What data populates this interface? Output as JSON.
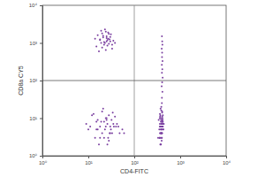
{
  "chart_data": {
    "type": "scatter",
    "log": true,
    "grid": false,
    "color": "#7a3fa0",
    "marker": "dot",
    "xlabel": "CD4-FITC",
    "ylabel": "CD8a CY5",
    "xlim": [
      1,
      10000
    ],
    "ylim": [
      1,
      10000
    ],
    "xticks": [
      {
        "value": 1,
        "label": "10⁰"
      },
      {
        "value": 10,
        "label": "10¹"
      },
      {
        "value": 100,
        "label": "10²"
      },
      {
        "value": 1000,
        "label": "10³"
      },
      {
        "value": 10000,
        "label": "10⁴"
      }
    ],
    "yticks": [
      {
        "value": 1,
        "label": "10⁰"
      },
      {
        "value": 10,
        "label": "10¹"
      },
      {
        "value": 100,
        "label": "10²"
      },
      {
        "value": 1000,
        "label": "10³"
      },
      {
        "value": 10000,
        "label": "10⁴"
      }
    ],
    "gates": {
      "x": 100,
      "y": 100
    },
    "x": [
      18,
      22,
      25,
      30,
      15,
      20,
      27,
      33,
      24,
      19,
      28,
      21,
      16,
      26,
      35,
      23,
      29,
      17,
      31,
      22,
      25,
      20,
      27,
      38,
      14,
      24,
      30,
      19,
      26,
      21,
      33,
      23,
      28,
      18,
      25,
      15,
      22,
      30,
      12,
      40,
      18,
      25,
      35,
      10,
      28,
      20,
      45,
      16,
      33,
      24,
      14,
      38,
      26,
      19,
      55,
      11,
      29,
      21,
      17,
      32,
      23,
      42,
      13,
      27,
      36,
      20,
      24,
      31,
      9,
      48,
      18,
      26,
      15,
      34,
      22,
      28,
      16,
      25,
      30,
      60,
      350,
      380,
      400,
      420,
      360,
      390,
      410,
      370,
      430,
      340,
      395,
      405,
      375,
      385,
      415,
      355,
      365,
      425,
      398,
      388,
      372,
      402,
      412,
      382,
      362,
      392,
      440,
      330,
      378,
      408,
      418,
      368,
      386,
      396,
      352,
      406,
      384,
      374,
      394,
      414,
      364,
      404,
      381,
      391,
      371,
      401,
      411,
      361,
      389,
      399,
      379,
      369,
      409,
      419,
      359,
      393,
      383,
      373,
      403,
      413,
      400,
      410,
      395,
      405,
      415,
      400,
      408,
      398,
      412,
      402,
      404,
      396,
      410,
      406,
      400
    ],
    "values": [
      1200,
      900,
      1500,
      1100,
      800,
      1800,
      1300,
      700,
      2000,
      1000,
      950,
      1400,
      1600,
      850,
      1150,
      2300,
      1250,
      600,
      1700,
      1050,
      1350,
      750,
      1900,
      1000,
      1300,
      650,
      1450,
      2100,
      1200,
      1550,
      900,
      1000,
      1750,
      1250,
      1100,
      5,
      8,
      4,
      12,
      6,
      3,
      10,
      7,
      5,
      2.5,
      15,
      6,
      9,
      4,
      6,
      3,
      11,
      7,
      8,
      5,
      6,
      4,
      18,
      2,
      9,
      5,
      7,
      13,
      3,
      6,
      4,
      10,
      5,
      7,
      4,
      6,
      2,
      8,
      14,
      3,
      12,
      5,
      9,
      6,
      4,
      5,
      8,
      3,
      6,
      10,
      4,
      7,
      12,
      5,
      9,
      2.5,
      15,
      6,
      4,
      8,
      3,
      11,
      5,
      7,
      20,
      6,
      4,
      9,
      2,
      13,
      5,
      7,
      3,
      10,
      6,
      8,
      4,
      16,
      5,
      3,
      11,
      7,
      2,
      6,
      9,
      4,
      14,
      5,
      8,
      3,
      6,
      10,
      7,
      4,
      25,
      5,
      2,
      8,
      12,
      6,
      3,
      9,
      18,
      4,
      7,
      35,
      50,
      70,
      90,
      120,
      160,
      200,
      260,
      330,
      420,
      550,
      700,
      900,
      1100,
      1500
    ]
  }
}
